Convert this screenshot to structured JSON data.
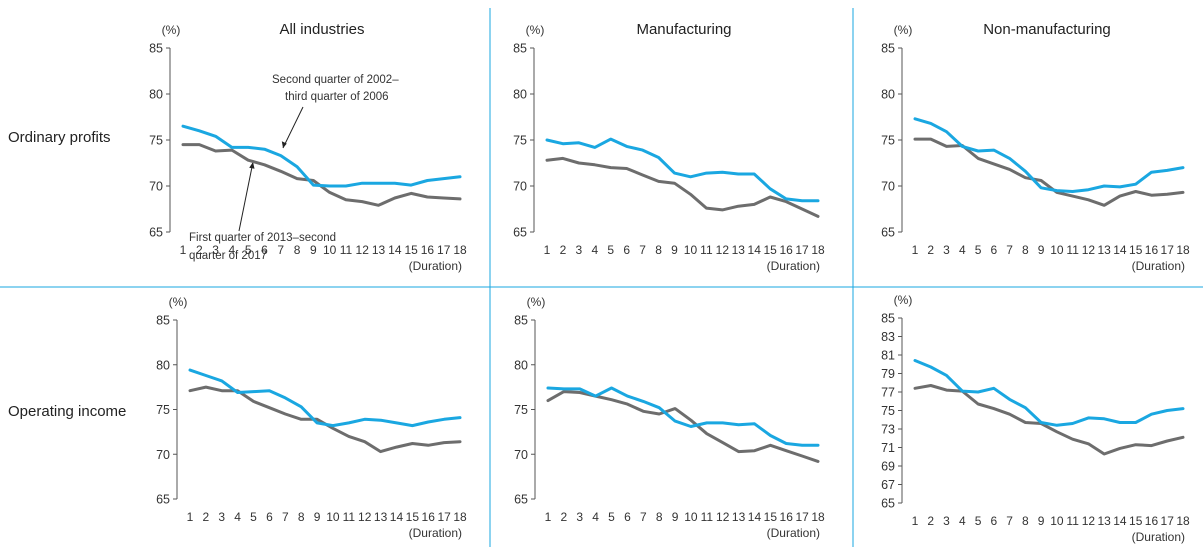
{
  "row_labels": [
    "Ordinary profits",
    "Operating income"
  ],
  "colors": {
    "series_a": "#1aa7e1",
    "series_b": "#6d6d6d",
    "divider": "#1aa7e1",
    "axis": "#555555"
  },
  "chart_data": [
    {
      "type": "line",
      "title": "All industries",
      "ylabel": "(%)",
      "xlabel": "(Duration)",
      "ylim": [
        65,
        85
      ],
      "yticks": [
        65,
        70,
        75,
        80,
        85
      ],
      "categories": [
        "1",
        "2",
        "3",
        "4",
        "5",
        "6",
        "7",
        "8",
        "9",
        "10",
        "11",
        "12",
        "13",
        "14",
        "15",
        "16",
        "17",
        "18"
      ],
      "annotations": [
        "Second quarter of 2002–third quarter of 2006",
        "First quarter of 2013–second quarter of 2017"
      ],
      "series": [
        {
          "values": [
            76.5,
            76.0,
            75.4,
            74.2,
            74.2,
            74.0,
            73.3,
            72.1,
            70.1,
            70.0,
            70.0,
            70.3,
            70.3,
            70.3,
            70.1,
            70.6,
            70.8,
            71.0
          ]
        },
        {
          "values": [
            74.5,
            74.5,
            73.8,
            73.9,
            72.8,
            72.3,
            71.6,
            70.8,
            70.6,
            69.3,
            68.5,
            68.3,
            67.9,
            68.7,
            69.2,
            68.8,
            68.7,
            68.6
          ]
        }
      ]
    },
    {
      "type": "line",
      "title": "Manufacturing",
      "ylabel": "(%)",
      "xlabel": "(Duration)",
      "ylim": [
        65,
        85
      ],
      "yticks": [
        65,
        70,
        75,
        80,
        85
      ],
      "categories": [
        "1",
        "2",
        "3",
        "4",
        "5",
        "6",
        "7",
        "8",
        "9",
        "10",
        "11",
        "12",
        "13",
        "14",
        "15",
        "16",
        "17",
        "18"
      ],
      "series": [
        {
          "values": [
            75.0,
            74.6,
            74.7,
            74.2,
            75.1,
            74.3,
            73.9,
            73.1,
            71.4,
            71.0,
            71.4,
            71.5,
            71.3,
            71.3,
            69.7,
            68.6,
            68.4,
            68.4
          ]
        },
        {
          "values": [
            72.8,
            73.0,
            72.5,
            72.3,
            72.0,
            71.9,
            71.2,
            70.5,
            70.3,
            69.1,
            67.6,
            67.4,
            67.8,
            68.0,
            68.8,
            68.3,
            67.5,
            66.7
          ]
        }
      ]
    },
    {
      "type": "line",
      "title": "Non-manufacturing",
      "ylabel": "(%)",
      "xlabel": "(Duration)",
      "ylim": [
        65,
        85
      ],
      "yticks": [
        65,
        70,
        75,
        80,
        85
      ],
      "categories": [
        "1",
        "2",
        "3",
        "4",
        "5",
        "6",
        "7",
        "8",
        "9",
        "10",
        "11",
        "12",
        "13",
        "14",
        "15",
        "16",
        "17",
        "18"
      ],
      "series": [
        {
          "values": [
            77.3,
            76.8,
            75.9,
            74.3,
            73.8,
            73.9,
            73.0,
            71.6,
            69.8,
            69.5,
            69.4,
            69.6,
            70.0,
            69.9,
            70.2,
            71.5,
            71.7,
            72.0
          ]
        },
        {
          "values": [
            75.1,
            75.1,
            74.3,
            74.4,
            73.0,
            72.4,
            71.8,
            70.9,
            70.6,
            69.3,
            68.9,
            68.5,
            67.9,
            68.9,
            69.4,
            69.0,
            69.1,
            69.3
          ]
        }
      ]
    },
    {
      "type": "line",
      "ylabel": "(%)",
      "xlabel": "(Duration)",
      "ylim": [
        65,
        85
      ],
      "yticks": [
        65,
        70,
        75,
        80,
        85
      ],
      "categories": [
        "1",
        "2",
        "3",
        "4",
        "5",
        "6",
        "7",
        "8",
        "9",
        "10",
        "11",
        "12",
        "13",
        "14",
        "15",
        "16",
        "17",
        "18"
      ],
      "series": [
        {
          "values": [
            79.4,
            78.8,
            78.2,
            76.9,
            77.0,
            77.1,
            76.3,
            75.3,
            73.5,
            73.2,
            73.5,
            73.9,
            73.8,
            73.5,
            73.2,
            73.6,
            73.9,
            74.1
          ]
        },
        {
          "values": [
            77.1,
            77.5,
            77.1,
            77.1,
            75.9,
            75.2,
            74.5,
            73.9,
            73.9,
            72.9,
            72.0,
            71.4,
            70.3,
            70.8,
            71.2,
            71.0,
            71.3,
            71.4
          ]
        }
      ]
    },
    {
      "type": "line",
      "ylabel": "(%)",
      "xlabel": "(Duration)",
      "ylim": [
        65,
        85
      ],
      "yticks": [
        65,
        70,
        75,
        80,
        85
      ],
      "categories": [
        "1",
        "2",
        "3",
        "4",
        "5",
        "6",
        "7",
        "8",
        "9",
        "10",
        "11",
        "12",
        "13",
        "14",
        "15",
        "16",
        "17",
        "18"
      ],
      "series": [
        {
          "values": [
            77.4,
            77.3,
            77.3,
            76.5,
            77.4,
            76.5,
            75.9,
            75.2,
            73.7,
            73.1,
            73.5,
            73.5,
            73.3,
            73.4,
            72.1,
            71.2,
            71.0,
            71.0
          ]
        },
        {
          "values": [
            76.0,
            77.0,
            76.9,
            76.5,
            76.1,
            75.6,
            74.8,
            74.5,
            75.1,
            73.8,
            72.3,
            71.3,
            70.3,
            70.4,
            71.0,
            70.4,
            69.8,
            69.2
          ]
        }
      ]
    },
    {
      "type": "line",
      "ylabel": "(%)",
      "xlabel": "(Duration)",
      "ylim": [
        65,
        85
      ],
      "yticks": [
        65,
        67,
        69,
        71,
        73,
        75,
        77,
        79,
        81,
        83,
        85
      ],
      "categories": [
        "1",
        "2",
        "3",
        "4",
        "5",
        "6",
        "7",
        "8",
        "9",
        "10",
        "11",
        "12",
        "13",
        "14",
        "15",
        "16",
        "17",
        "18"
      ],
      "series": [
        {
          "values": [
            80.4,
            79.7,
            78.8,
            77.1,
            77.0,
            77.4,
            76.2,
            75.3,
            73.7,
            73.4,
            73.6,
            74.2,
            74.1,
            73.7,
            73.7,
            74.6,
            75.0,
            75.2
          ]
        },
        {
          "values": [
            77.4,
            77.7,
            77.2,
            77.1,
            75.7,
            75.2,
            74.6,
            73.7,
            73.6,
            72.7,
            71.9,
            71.4,
            70.3,
            70.9,
            71.3,
            71.2,
            71.7,
            72.1
          ]
        }
      ]
    }
  ]
}
